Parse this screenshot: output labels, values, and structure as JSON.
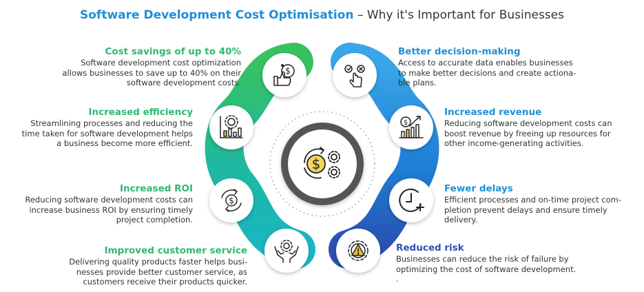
{
  "title": {
    "part1": "Software Development Cost Optimisation",
    "dash": " – ",
    "part2": "Why it's Important for Businesses"
  },
  "colors": {
    "title_blue": "#1f8fd6",
    "green": "#2eb872",
    "teal": "#1db3b3",
    "blue": "#1f8fd6",
    "navy": "#2f4fb0"
  },
  "benefits_left": [
    {
      "heading": "Cost savings of up to 40%",
      "lines": [
        "Software development cost optimization",
        "allows businesses to save up to 40% on their",
        "software development costs."
      ],
      "icon": "thumbs-up-dollar-icon"
    },
    {
      "heading": "Increased efficiency",
      "lines": [
        "Streamlining processes and reducing the",
        "time taken for software development helps",
        "a business become more efficient."
      ],
      "icon": "gear-chart-icon"
    },
    {
      "heading": "Increased ROI",
      "lines": [
        "Reducing software development costs can",
        "increase business ROI by ensuring timely",
        "project completion."
      ],
      "icon": "dollar-cycle-icon"
    },
    {
      "heading": "Improved customer service",
      "lines": [
        "Delivering quality products faster helps busi-",
        "nesses provide better customer service, as",
        "customers receive their products quicker."
      ],
      "icon": "hands-gear-icon"
    }
  ],
  "benefits_right": [
    {
      "heading": "Better decision-making",
      "lines": [
        "Access to accurate data enables businesses",
        "to make better decisions and create actiona-",
        "ble plans."
      ],
      "icon": "hand-choice-icon"
    },
    {
      "heading": "Increased revenue",
      "lines": [
        "Reducing software development costs can",
        "boost revenue by freeing up resources for",
        "other income-generating activities."
      ],
      "icon": "revenue-chart-icon"
    },
    {
      "heading": "Fewer delays",
      "lines": [
        "Efficient processes and on-time project com-",
        "pletion prevent delays and ensure timely",
        "delivery."
      ],
      "icon": "clock-plus-icon"
    },
    {
      "heading": "Reduced risk",
      "lines": [
        "Businesses can reduce the risk of failure by",
        "optimizing the cost of software development.",
        "."
      ],
      "icon": "gear-warning-icon"
    }
  ],
  "center_icon": "dollar-gears-icon"
}
